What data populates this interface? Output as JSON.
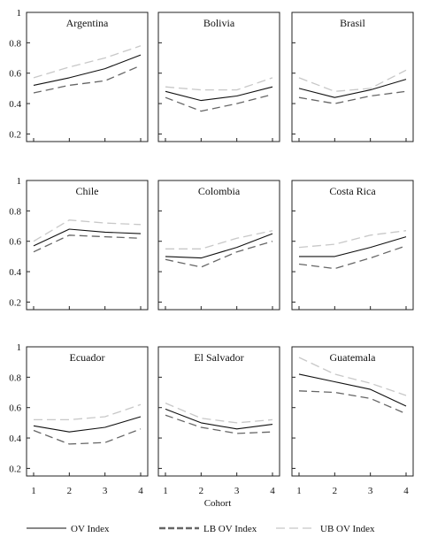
{
  "chart_data": {
    "type": "line",
    "xlabel": "Cohort",
    "x": [
      1,
      2,
      3,
      4
    ],
    "ylim": [
      0.15,
      1.0
    ],
    "yticks": [
      0.2,
      0.4,
      0.6,
      0.8,
      1
    ],
    "ytick_labels": [
      "0.2",
      "0.4",
      "0.6",
      "0.8",
      "1"
    ],
    "xtick_labels": [
      "1",
      "2",
      "3",
      "4"
    ],
    "grid": false,
    "legend": {
      "placement": "bottom",
      "entries": [
        {
          "name": "OV Index",
          "color": "#111111",
          "style": "solid"
        },
        {
          "name": "LB OV Index",
          "color": "#666666",
          "style": "dashed"
        },
        {
          "name": "UB OV Index",
          "color": "#c8c8c8",
          "style": "dashed"
        }
      ]
    },
    "panels": [
      {
        "title": "Argentina",
        "series": [
          {
            "name": "OV Index",
            "values": [
              0.52,
              0.57,
              0.63,
              0.72
            ]
          },
          {
            "name": "LB OV Index",
            "values": [
              0.47,
              0.52,
              0.55,
              0.65
            ]
          },
          {
            "name": "UB OV Index",
            "values": [
              0.57,
              0.64,
              0.7,
              0.78
            ]
          }
        ]
      },
      {
        "title": "Bolivia",
        "series": [
          {
            "name": "OV Index",
            "values": [
              0.48,
              0.42,
              0.45,
              0.51
            ]
          },
          {
            "name": "LB OV Index",
            "values": [
              0.44,
              0.35,
              0.4,
              0.46
            ]
          },
          {
            "name": "UB OV Index",
            "values": [
              0.51,
              0.49,
              0.49,
              0.57
            ]
          }
        ]
      },
      {
        "title": "Brasil",
        "series": [
          {
            "name": "OV Index",
            "values": [
              0.5,
              0.44,
              0.49,
              0.56
            ]
          },
          {
            "name": "LB OV Index",
            "values": [
              0.44,
              0.4,
              0.45,
              0.48
            ]
          },
          {
            "name": "UB OV Index",
            "values": [
              0.57,
              0.48,
              0.5,
              0.62
            ]
          }
        ]
      },
      {
        "title": "Chile",
        "series": [
          {
            "name": "OV Index",
            "values": [
              0.57,
              0.68,
              0.66,
              0.65
            ]
          },
          {
            "name": "LB OV Index",
            "values": [
              0.53,
              0.64,
              0.63,
              0.62
            ]
          },
          {
            "name": "UB OV Index",
            "values": [
              0.6,
              0.74,
              0.72,
              0.71
            ]
          }
        ]
      },
      {
        "title": "Colombia",
        "series": [
          {
            "name": "OV Index",
            "values": [
              0.5,
              0.49,
              0.56,
              0.65
            ]
          },
          {
            "name": "LB OV Index",
            "values": [
              0.48,
              0.43,
              0.53,
              0.6
            ]
          },
          {
            "name": "UB OV Index",
            "values": [
              0.55,
              0.55,
              0.62,
              0.67
            ]
          }
        ]
      },
      {
        "title": "Costa Rica",
        "series": [
          {
            "name": "OV Index",
            "values": [
              0.5,
              0.5,
              0.56,
              0.63
            ]
          },
          {
            "name": "LB OV Index",
            "values": [
              0.45,
              0.42,
              0.49,
              0.57
            ]
          },
          {
            "name": "UB OV Index",
            "values": [
              0.56,
              0.58,
              0.64,
              0.67
            ]
          }
        ]
      },
      {
        "title": "Ecuador",
        "series": [
          {
            "name": "OV Index",
            "values": [
              0.48,
              0.44,
              0.47,
              0.54
            ]
          },
          {
            "name": "LB OV Index",
            "values": [
              0.45,
              0.36,
              0.37,
              0.46
            ]
          },
          {
            "name": "UB OV Index",
            "values": [
              0.52,
              0.52,
              0.54,
              0.62
            ]
          }
        ]
      },
      {
        "title": "El Salvador",
        "series": [
          {
            "name": "OV Index",
            "values": [
              0.59,
              0.5,
              0.46,
              0.49
            ]
          },
          {
            "name": "LB OV Index",
            "values": [
              0.55,
              0.47,
              0.43,
              0.44
            ]
          },
          {
            "name": "UB OV Index",
            "values": [
              0.63,
              0.53,
              0.5,
              0.52
            ]
          }
        ]
      },
      {
        "title": "Guatemala",
        "series": [
          {
            "name": "OV Index",
            "values": [
              0.82,
              0.77,
              0.72,
              0.61
            ]
          },
          {
            "name": "LB OV Index",
            "values": [
              0.71,
              0.7,
              0.66,
              0.56
            ]
          },
          {
            "name": "UB OV Index",
            "values": [
              0.93,
              0.82,
              0.76,
              0.68
            ]
          }
        ]
      }
    ]
  }
}
